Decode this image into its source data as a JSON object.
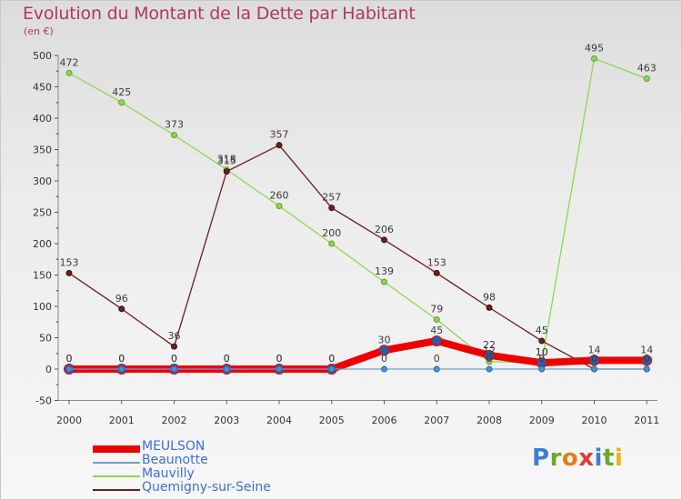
{
  "title": "Evolution du Montant de la Dette par Habitant",
  "subtitle": "(en €)",
  "logo": {
    "letters": [
      {
        "ch": "P",
        "color": "#3a7fd5"
      },
      {
        "ch": "r",
        "color": "#6aaa2a"
      },
      {
        "ch": "o",
        "color": "#e87a17"
      },
      {
        "ch": "x",
        "color": "#e23a3a"
      },
      {
        "ch": "i",
        "color": "#3a7fd5"
      },
      {
        "ch": "t",
        "color": "#6aaa2a"
      },
      {
        "ch": "i",
        "color": "#e8b417"
      }
    ]
  },
  "chart_data": {
    "type": "line",
    "title": "Evolution du Montant de la Dette par Habitant",
    "ylabel": "(en €)",
    "x": [
      "2000",
      "2001",
      "2002",
      "2003",
      "2004",
      "2005",
      "2006",
      "2007",
      "2008",
      "2009",
      "2010",
      "2011"
    ],
    "ylim": [
      -50,
      500
    ],
    "yticks": [
      -50,
      0,
      50,
      100,
      150,
      200,
      250,
      300,
      350,
      400,
      450,
      500
    ],
    "grid": false,
    "legend_position": "bottom-left",
    "series": [
      {
        "name": "MEULSON",
        "color": "#ee0000",
        "values": [
          0,
          0,
          0,
          0,
          0,
          0,
          30,
          45,
          22,
          10,
          14,
          14
        ],
        "labels": [
          "0",
          "0",
          "0",
          "0",
          "0",
          "0",
          "30",
          "45",
          "22",
          "10",
          "14",
          "14"
        ]
      },
      {
        "name": "Beaunotte",
        "color": "#6f9fcf",
        "values": [
          0,
          0,
          0,
          0,
          0,
          0,
          0,
          0,
          0,
          0,
          0,
          0
        ],
        "labels": [
          "0",
          "0",
          "0",
          "0",
          "0",
          "0",
          "0",
          "0",
          "0",
          "0",
          "0",
          "0"
        ]
      },
      {
        "name": "Mauvilly",
        "color": "#8fd650",
        "values": [
          472,
          425,
          373,
          318,
          260,
          200,
          139,
          79,
          12,
          10,
          495,
          463
        ],
        "labels": [
          "472",
          "425",
          "373",
          "318",
          "260",
          "200",
          "139",
          "79",
          "12",
          "10",
          "495",
          "463"
        ]
      },
      {
        "name": "Quemigny-sur-Seine",
        "color": "#6b1f1f",
        "values": [
          153,
          96,
          36,
          315,
          357,
          257,
          206,
          153,
          98,
          45,
          0,
          0
        ],
        "labels": [
          "153",
          "96",
          "36",
          "315",
          "357",
          "257",
          "206",
          "153",
          "98",
          "45",
          "0",
          "0"
        ]
      }
    ]
  }
}
